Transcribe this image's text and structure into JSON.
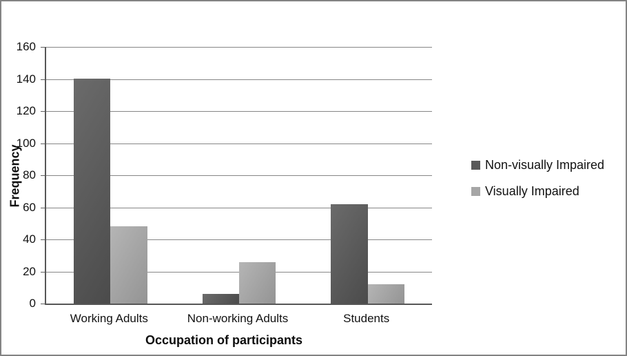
{
  "chart_data": {
    "type": "bar",
    "categories": [
      "Working Adults",
      "Non-working Adults",
      "Students"
    ],
    "series": [
      {
        "name": "Non-visually Impaired",
        "values": [
          140,
          6,
          62
        ],
        "color": "#595959",
        "color_light": "#6b6b6b",
        "color_dark": "#4b4b4b"
      },
      {
        "name": "Visually Impaired",
        "values": [
          48,
          26,
          12
        ],
        "color": "#a6a6a6",
        "color_light": "#b5b5b5",
        "color_dark": "#949494"
      }
    ],
    "xlabel": "Occupation of participants",
    "ylabel": "Frequency",
    "ylim": [
      0,
      160
    ],
    "ytick_step": 20,
    "ytick_labels": [
      "0",
      "20",
      "40",
      "60",
      "80",
      "100",
      "120",
      "140",
      "160"
    ],
    "grid": "horizontal",
    "legend_position": "right"
  },
  "colors": {
    "background": "#ffffff",
    "frame_border": "#838383",
    "axis_line": "#565656",
    "gridline": "#868686",
    "text": "#111111"
  }
}
